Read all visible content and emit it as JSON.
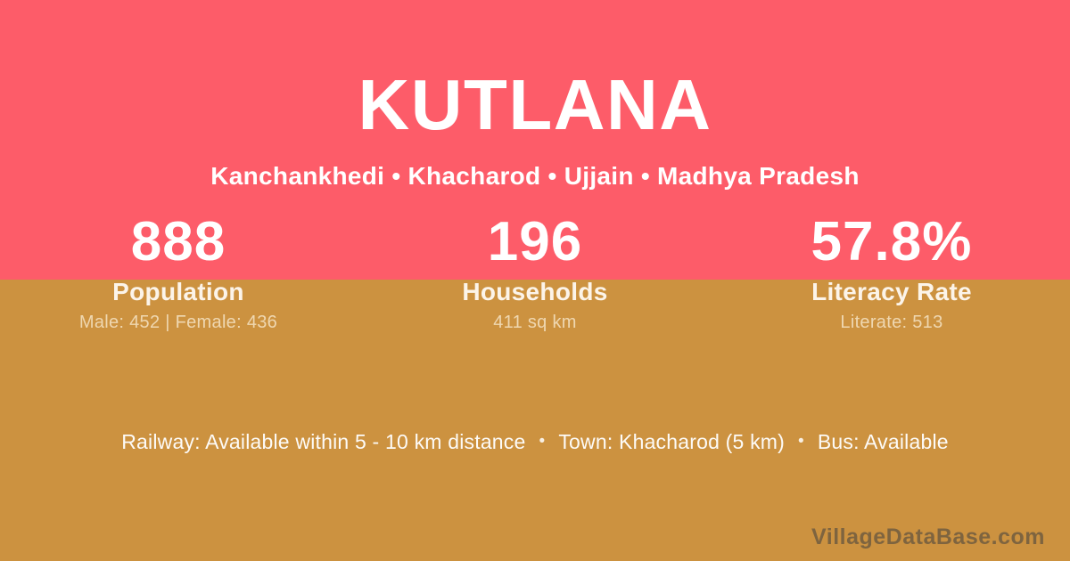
{
  "colors": {
    "top_background": "#fd5c69",
    "bottom_background": "#cc9240",
    "primary_text": "#ffffff",
    "watermark_text": "#3e3e3e"
  },
  "header": {
    "title": "KUTLANA",
    "location_line": "Kanchankhedi • Khacharod • Ujjain • Madhya Pradesh"
  },
  "stats": [
    {
      "value": "888",
      "label": "Population",
      "detail": "Male: 452 | Female: 436"
    },
    {
      "value": "196",
      "label": "Households",
      "detail": "411 sq km"
    },
    {
      "value": "57.8%",
      "label": "Literacy Rate",
      "detail": "Literate: 513"
    }
  ],
  "info": {
    "separator": "•",
    "segments": [
      "Railway: Available within 5 - 10 km distance",
      "Town: Khacharod (5 km)",
      "Bus: Available"
    ]
  },
  "footer": {
    "watermark": "VillageDataBase.com"
  }
}
